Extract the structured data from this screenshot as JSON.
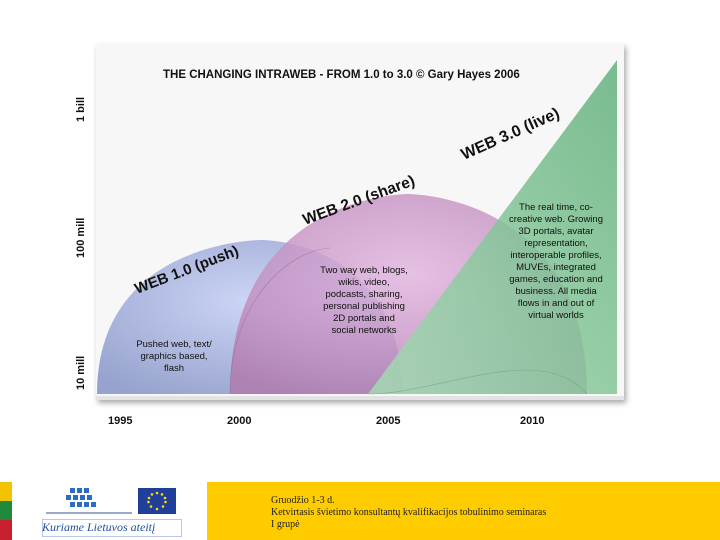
{
  "diagram": {
    "title": "THE CHANGING INTRAWEB - FROM 1.0 to 3.0 © Gary Hayes 2006",
    "y_labels": [
      "1 bill",
      "100 mill",
      "10 mill"
    ],
    "x_labels": [
      "1995",
      "2000",
      "2005",
      "2010"
    ],
    "phases": [
      {
        "label": "WEB 1.0 (push)",
        "color": "#9fb0e6",
        "description": [
          "Pushed web, text/",
          "graphics based,",
          "flash"
        ]
      },
      {
        "label": "WEB 2.0 (share)",
        "color": "#c98fc8",
        "description": [
          "Two way web, blogs,",
          "wikis, video,",
          "podcasts, sharing,",
          "personal publishing",
          "2D portals and",
          "social networks"
        ]
      },
      {
        "label": "WEB 3.0 (live)",
        "color": "#7fc394",
        "description": [
          "The real time, co-",
          "creative web. Growing",
          "3D portals, avatar",
          "representation,",
          "interoperable profiles,",
          "MUVEs, integrated",
          "games, education and",
          "business. All media",
          "flows in and out of",
          "virtual worlds"
        ]
      }
    ]
  },
  "footer": {
    "line1": "Gruodžio 1-3 d.",
    "line2": "Ketvirtasis švietimo konsultantų kvalifikacijos tobulinimo seminaras",
    "line3": "I grupė",
    "motto": "Kuriame Lietuvos ateitį"
  }
}
